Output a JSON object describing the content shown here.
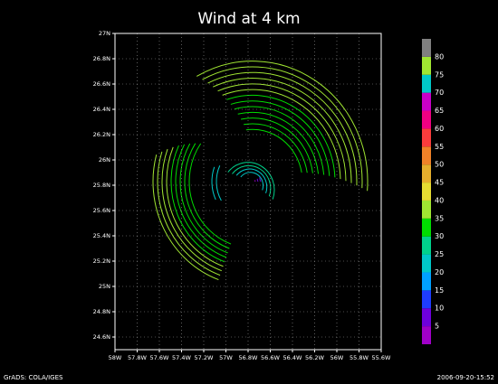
{
  "chart_data": {
    "type": "streamline",
    "title": "Wind at 4 km",
    "xlim": [
      -58,
      -55.6
    ],
    "xticks": [
      {
        "value": -58,
        "label": "58W"
      },
      {
        "value": -57.8,
        "label": "57.8W"
      },
      {
        "value": -57.6,
        "label": "57.6W"
      },
      {
        "value": -57.4,
        "label": "57.4W"
      },
      {
        "value": -57.2,
        "label": "57.2W"
      },
      {
        "value": -57,
        "label": "57W"
      },
      {
        "value": -56.8,
        "label": "56.8W"
      },
      {
        "value": -56.6,
        "label": "56.6W"
      },
      {
        "value": -56.4,
        "label": "56.4W"
      },
      {
        "value": -56.2,
        "label": "56.2W"
      },
      {
        "value": -56,
        "label": "56W"
      },
      {
        "value": -55.8,
        "label": "55.8W"
      },
      {
        "value": -55.6,
        "label": "55.6W"
      }
    ],
    "ylim": [
      24.5,
      27
    ],
    "yticks": [
      {
        "value": 24.6,
        "label": "24.6N"
      },
      {
        "value": 24.8,
        "label": "24.8N"
      },
      {
        "value": 25,
        "label": "25N"
      },
      {
        "value": 25.2,
        "label": "25.2N"
      },
      {
        "value": 25.4,
        "label": "25.4N"
      },
      {
        "value": 25.6,
        "label": "25.6N"
      },
      {
        "value": 25.8,
        "label": "25.8N"
      },
      {
        "value": 26,
        "label": "26N"
      },
      {
        "value": 26.2,
        "label": "26.2N"
      },
      {
        "value": 26.4,
        "label": "26.4N"
      },
      {
        "value": 26.6,
        "label": "26.6N"
      },
      {
        "value": 26.8,
        "label": "26.8N"
      },
      {
        "value": 27,
        "label": "27N"
      }
    ],
    "grid": true,
    "colorbar": {
      "levels": [
        5,
        10,
        15,
        20,
        25,
        30,
        35,
        40,
        45,
        50,
        55,
        60,
        65,
        70,
        75,
        80
      ],
      "colors": [
        "#a000c8",
        "#6e00dc",
        "#1e3cff",
        "#00a0ff",
        "#00c8c8",
        "#00d28c",
        "#00dc00",
        "#a0e632",
        "#e6dc32",
        "#e6af2d",
        "#f08228",
        "#fa3c3c",
        "#f00082",
        "#c800c8",
        "#00c8c8",
        "#a0e632",
        "#808080"
      ]
    },
    "footer_left": "GrADS: COLA/IGES",
    "footer_right": "2006-09-20-15:52"
  }
}
